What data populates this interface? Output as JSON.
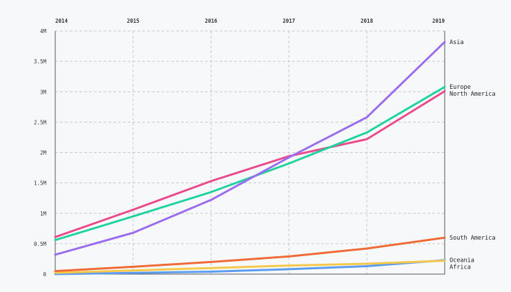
{
  "chart_data": {
    "type": "line",
    "title": "",
    "xlabel": "",
    "ylabel": "",
    "x": [
      "2014",
      "2015",
      "2016",
      "2017",
      "2018",
      "2019"
    ],
    "ylim": [
      0,
      4000000
    ],
    "yticks": [
      0,
      500000,
      1000000,
      1500000,
      2000000,
      2500000,
      3000000,
      3500000,
      4000000
    ],
    "ytick_labels": [
      "0",
      "0.5M",
      "1M",
      "1.5M",
      "2M",
      "2.5M",
      "3M",
      "3.5M",
      "4M"
    ],
    "grid": true,
    "series": [
      {
        "name": "Asia",
        "color": "#9b6cf0",
        "values": [
          320000,
          680000,
          1220000,
          1920000,
          2580000,
          3820000
        ]
      },
      {
        "name": "Europe",
        "color": "#1fd39f",
        "values": [
          560000,
          950000,
          1350000,
          1820000,
          2330000,
          3080000
        ]
      },
      {
        "name": "North America",
        "color": "#ea4a8b",
        "values": [
          610000,
          1060000,
          1530000,
          1940000,
          2220000,
          3010000
        ]
      },
      {
        "name": "South America",
        "color": "#f06a35",
        "values": [
          50000,
          120000,
          200000,
          290000,
          420000,
          600000
        ]
      },
      {
        "name": "Africa",
        "color": "#f5c84a",
        "values": [
          20000,
          60000,
          100000,
          140000,
          170000,
          220000
        ]
      },
      {
        "name": "Oceania",
        "color": "#5b9cf0",
        "values": [
          0,
          20000,
          40000,
          80000,
          130000,
          230000
        ]
      }
    ]
  }
}
